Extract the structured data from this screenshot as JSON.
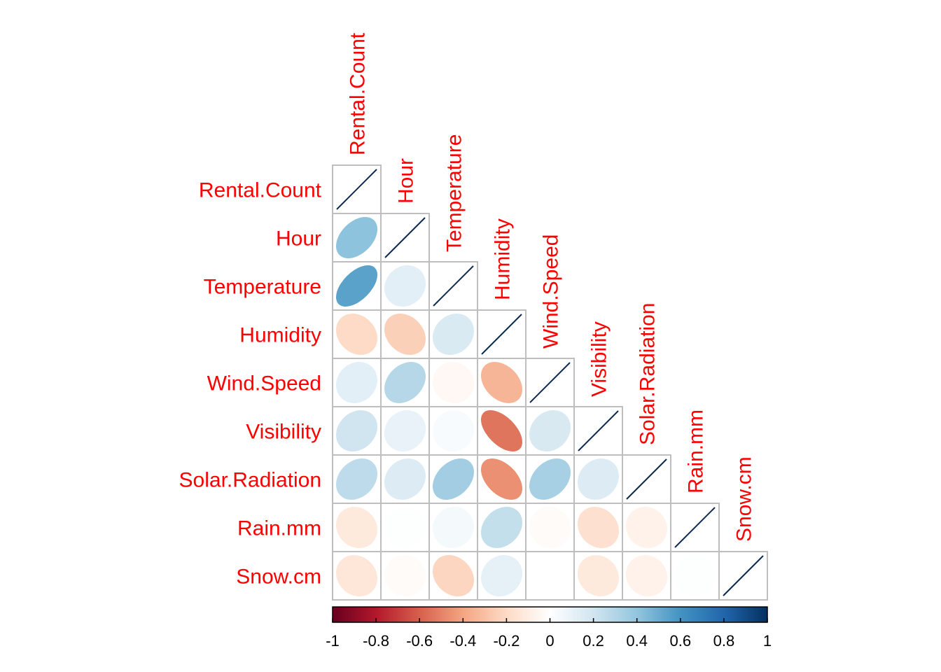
{
  "chart_data": {
    "type": "heatmap",
    "style": "ellipse-correlogram-lower-triangle",
    "variables": [
      "Rental.Count",
      "Hour",
      "Temperature",
      "Humidity",
      "Wind.Speed",
      "Visibility",
      "Solar.Radiation",
      "Rain.mm",
      "Snow.cm"
    ],
    "correlations": [
      [
        1.0
      ],
      [
        0.41,
        1.0
      ],
      [
        0.54,
        0.12,
        1.0
      ],
      [
        -0.2,
        -0.24,
        0.16,
        1.0
      ],
      [
        0.12,
        0.29,
        -0.04,
        -0.34,
        1.0
      ],
      [
        0.2,
        0.1,
        0.03,
        -0.54,
        0.17,
        1.0
      ],
      [
        0.26,
        0.15,
        0.35,
        -0.46,
        0.33,
        0.15,
        1.0
      ],
      [
        -0.12,
        0.01,
        0.05,
        0.24,
        -0.02,
        -0.17,
        -0.07,
        1.0
      ],
      [
        -0.14,
        -0.02,
        -0.22,
        0.11,
        0.0,
        -0.12,
        -0.07,
        0.01,
        1.0
      ]
    ],
    "colorbar": {
      "range": [
        -1,
        1
      ],
      "ticks": [
        "-1",
        "-0.8",
        "-0.6",
        "-0.4",
        "-0.2",
        "0",
        "0.2",
        "0.4",
        "0.6",
        "0.8",
        "1"
      ],
      "colors": [
        "#67001f",
        "#b2182b",
        "#d6604d",
        "#f4a582",
        "#fddbc7",
        "#ffffff",
        "#d1e5f0",
        "#92c5de",
        "#4393c3",
        "#2166ac",
        "#053061"
      ]
    },
    "label_color": "#ff0000",
    "diagonal_line_color": "#0d2a4f",
    "grid_color": "#bebebe"
  }
}
